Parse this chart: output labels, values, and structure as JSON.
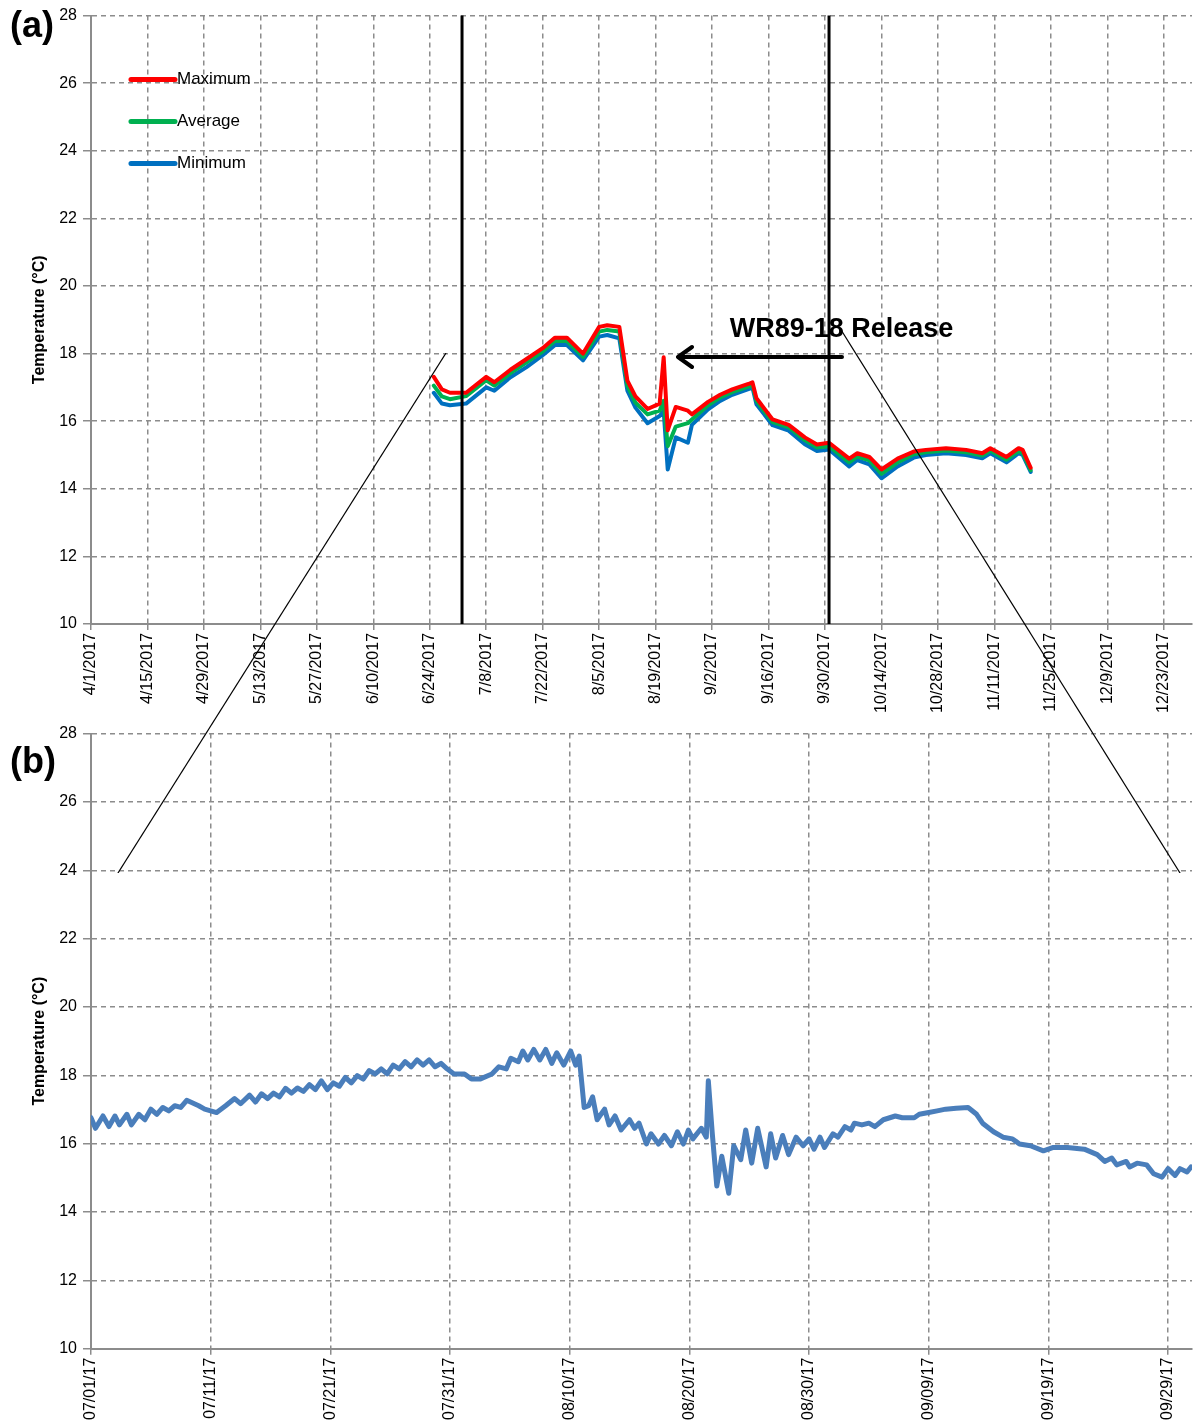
{
  "chart_data": [
    {
      "type": "line",
      "ylabel": "Temperature (°C)",
      "legend": "top left",
      "grid": true,
      "marker": "none",
      "x": [
        "2017-06-25",
        "2017-06-27",
        "2017-06-29",
        "2017-07-03",
        "2017-07-08",
        "2017-07-10",
        "2017-07-14",
        "2017-07-18",
        "2017-07-22",
        "2017-07-25",
        "2017-07-28",
        "2017-08-01",
        "2017-08-05",
        "2017-08-07",
        "2017-08-10",
        "2017-08-12",
        "2017-08-14",
        "2017-08-17",
        "2017-08-20",
        "2017-08-21",
        "2017-08-22",
        "2017-08-24",
        "2017-08-27",
        "2017-08-28",
        "2017-09-01",
        "2017-09-04",
        "2017-09-07",
        "2017-09-11",
        "2017-09-12",
        "2017-09-13",
        "2017-09-17",
        "2017-09-21",
        "2017-09-25",
        "2017-09-28",
        "2017-10-01",
        "2017-10-06",
        "2017-10-08",
        "2017-10-11",
        "2017-10-14",
        "2017-10-18",
        "2017-10-22",
        "2017-10-25",
        "2017-10-30",
        "2017-11-04",
        "2017-11-08",
        "2017-11-10",
        "2017-11-14",
        "2017-11-17",
        "2017-11-18",
        "2017-11-20"
      ],
      "series": [
        {
          "name": "Maximum",
          "color": "#ff0000",
          "values": [
            17.31,
            16.94,
            16.84,
            16.84,
            17.31,
            17.15,
            17.52,
            17.84,
            18.16,
            18.47,
            18.47,
            18.0,
            18.79,
            18.84,
            18.79,
            17.2,
            16.73,
            16.36,
            16.52,
            17.89,
            15.73,
            16.42,
            16.31,
            16.2,
            16.57,
            16.78,
            16.94,
            17.1,
            17.15,
            16.68,
            16.05,
            15.89,
            15.52,
            15.31,
            15.36,
            14.89,
            15.05,
            14.94,
            14.57,
            14.89,
            15.1,
            15.15,
            15.2,
            15.15,
            15.05,
            15.2,
            14.94,
            15.2,
            15.15,
            14.62
          ]
        },
        {
          "name": "Average",
          "color": "#00b050",
          "values": [
            17.05,
            16.73,
            16.65,
            16.74,
            17.21,
            17.05,
            17.42,
            17.74,
            18.06,
            18.37,
            18.37,
            17.9,
            18.65,
            18.7,
            18.65,
            17.05,
            16.55,
            16.2,
            16.31,
            16.6,
            15.26,
            15.84,
            15.94,
            16.05,
            16.47,
            16.7,
            16.86,
            17.02,
            17.08,
            16.6,
            15.97,
            15.82,
            15.44,
            15.22,
            15.26,
            14.78,
            14.95,
            14.84,
            14.44,
            14.78,
            15.02,
            15.08,
            15.13,
            15.08,
            14.98,
            15.13,
            14.86,
            15.12,
            15.06,
            14.55
          ]
        },
        {
          "name": "Minimum",
          "color": "#0070c0",
          "values": [
            16.84,
            16.52,
            16.47,
            16.52,
            17.0,
            16.9,
            17.3,
            17.6,
            17.95,
            18.25,
            18.25,
            17.8,
            18.5,
            18.55,
            18.45,
            16.9,
            16.4,
            15.94,
            16.15,
            16.3,
            14.57,
            15.52,
            15.36,
            15.89,
            16.35,
            16.6,
            16.78,
            16.95,
            17.0,
            16.5,
            15.88,
            15.72,
            15.32,
            15.12,
            15.16,
            14.66,
            14.85,
            14.72,
            14.31,
            14.66,
            14.92,
            15.0,
            15.05,
            15.0,
            14.9,
            15.05,
            14.78,
            15.05,
            15.0,
            14.5
          ]
        }
      ],
      "xlim": [
        "2017-04-01",
        "2017-12-30"
      ],
      "xticks": [
        {
          "value": "2017-04-01",
          "label": "4/1/2017"
        },
        {
          "value": "2017-04-15",
          "label": "4/15/2017"
        },
        {
          "value": "2017-04-29",
          "label": "4/29/2017"
        },
        {
          "value": "2017-05-13",
          "label": "5/13/2017"
        },
        {
          "value": "2017-05-27",
          "label": "5/27/2017"
        },
        {
          "value": "2017-06-10",
          "label": "6/10/2017"
        },
        {
          "value": "2017-06-24",
          "label": "6/24/2017"
        },
        {
          "value": "2017-07-08",
          "label": "7/8/2017"
        },
        {
          "value": "2017-07-22",
          "label": "7/22/2017"
        },
        {
          "value": "2017-08-05",
          "label": "8/5/2017"
        },
        {
          "value": "2017-08-19",
          "label": "8/19/2017"
        },
        {
          "value": "2017-09-02",
          "label": "9/2/2017"
        },
        {
          "value": "2017-09-16",
          "label": "9/16/2017"
        },
        {
          "value": "2017-09-30",
          "label": "9/30/2017"
        },
        {
          "value": "2017-10-14",
          "label": "10/14/2017"
        },
        {
          "value": "2017-10-28",
          "label": "10/28/2017"
        },
        {
          "value": "2017-11-11",
          "label": "11/11/2017"
        },
        {
          "value": "2017-11-25",
          "label": "11/25/2017"
        },
        {
          "value": "2017-12-09",
          "label": "12/9/2017"
        },
        {
          "value": "2017-12-23",
          "label": "12/23/2017"
        }
      ],
      "ylim": [
        10,
        28
      ],
      "yticks": [
        10,
        12,
        14,
        16,
        18,
        20,
        22,
        24,
        26,
        28
      ],
      "ref_lines": [
        {
          "axis": "x",
          "value": "2017-07-02",
          "color": "#000000"
        },
        {
          "axis": "x",
          "value": "2017-10-01",
          "color": "#000000"
        }
      ],
      "annotations": [
        "(a)",
        {
          "text": "WR89-18 Release",
          "x": "2017-08-21",
          "y": 17.89
        }
      ]
    },
    {
      "type": "line",
      "ylabel": "Temperature (°C)",
      "grid": true,
      "marker": "none",
      "series": [
        {
          "color": "#4a7ebb",
          "x": [
            "2017-07-01T00:00",
            "2017-07-01T09:00",
            "2017-07-02T00:00",
            "2017-07-02T12:00",
            "2017-07-03T00:00",
            "2017-07-03T09:00",
            "2017-07-04T00:00",
            "2017-07-04T09:00",
            "2017-07-05T00:00",
            "2017-07-05T12:00",
            "2017-07-06T00:00",
            "2017-07-06T12:00",
            "2017-07-07T00:00",
            "2017-07-07T12:00",
            "2017-07-08T00:00",
            "2017-07-08T12:00",
            "2017-07-09T00:00",
            "2017-07-10T00:00",
            "2017-07-10T12:00",
            "2017-07-11T12:00",
            "2017-07-12T06:00",
            "2017-07-13T00:00",
            "2017-07-13T12:00",
            "2017-07-14T06:00",
            "2017-07-14T18:00",
            "2017-07-15T06:00",
            "2017-07-15T18:00",
            "2017-07-16T06:00",
            "2017-07-16T18:00",
            "2017-07-17T06:00",
            "2017-07-17T18:00",
            "2017-07-18T06:00",
            "2017-07-18T18:00",
            "2017-07-19T06:00",
            "2017-07-19T18:00",
            "2017-07-20T06:00",
            "2017-07-20T18:00",
            "2017-07-21T06:00",
            "2017-07-21T18:00",
            "2017-07-22T06:00",
            "2017-07-22T18:00",
            "2017-07-23T06:00",
            "2017-07-23T18:00",
            "2017-07-24T06:00",
            "2017-07-24T18:00",
            "2017-07-25T06:00",
            "2017-07-25T18:00",
            "2017-07-26T06:00",
            "2017-07-26T18:00",
            "2017-07-27T06:00",
            "2017-07-27T18:00",
            "2017-07-28T06:00",
            "2017-07-28T18:00",
            "2017-07-29T06:00",
            "2017-07-29T18:00",
            "2017-07-30T06:00",
            "2017-07-30T18:00",
            "2017-07-31T08:00",
            "2017-08-01T05:00",
            "2017-08-01T19:00",
            "2017-08-02T12:00",
            "2017-08-03T12:00",
            "2017-08-04T02:00",
            "2017-08-04T17:00",
            "2017-08-05T02:00",
            "2017-08-05T17:00",
            "2017-08-06T02:00",
            "2017-08-06T12:00",
            "2017-08-07T00:00",
            "2017-08-07T12:00",
            "2017-08-08T00:00",
            "2017-08-08T12:00",
            "2017-08-08T22:00",
            "2017-08-09T12:00",
            "2017-08-10T02:00",
            "2017-08-10T12:00",
            "2017-08-10T19:00",
            "2017-08-11T05:00",
            "2017-08-11T14:00",
            "2017-08-11T22:00",
            "2017-08-12T07:00",
            "2017-08-12T22:00",
            "2017-08-13T07:00",
            "2017-08-13T19:00",
            "2017-08-14T07:00",
            "2017-08-15T00:00",
            "2017-08-15T10:00",
            "2017-08-15T19:00",
            "2017-08-16T10:00",
            "2017-08-16T19:00",
            "2017-08-17T10:00",
            "2017-08-17T22:00",
            "2017-08-18T12:00",
            "2017-08-19T00:00",
            "2017-08-19T12:00",
            "2017-08-19T22:00",
            "2017-08-20T07:00",
            "2017-08-21T00:00",
            "2017-08-21T10:00",
            "2017-08-21T14:00",
            "2017-08-21T22:00",
            "2017-08-22T07:00",
            "2017-08-22T17:00",
            "2017-08-23T07:00",
            "2017-08-23T17:00",
            "2017-08-24T07:00",
            "2017-08-24T17:00",
            "2017-08-25T05:00",
            "2017-08-25T17:00",
            "2017-08-26T10:00",
            "2017-08-26T19:00",
            "2017-08-27T05:00",
            "2017-08-27T19:00",
            "2017-08-28T07:00",
            "2017-08-28T22:00",
            "2017-08-29T12:00",
            "2017-08-30T00:00",
            "2017-08-30T10:00",
            "2017-08-30T22:00",
            "2017-08-31T07:00",
            "2017-09-01T00:00",
            "2017-09-01T10:00",
            "2017-09-02T00:00",
            "2017-09-02T12:00",
            "2017-09-02T19:00",
            "2017-09-03T10:00",
            "2017-09-04T00:00",
            "2017-09-04T12:00",
            "2017-09-05T05:00",
            "2017-09-06T05:00",
            "2017-09-06T19:00",
            "2017-09-07T19:00",
            "2017-09-08T05:00",
            "2017-09-09T00:00",
            "2017-09-09T17:00",
            "2017-09-10T10:00",
            "2017-09-11T07:00",
            "2017-09-12T07:00",
            "2017-09-13T00:00",
            "2017-09-13T12:00",
            "2017-09-14T10:00",
            "2017-09-15T05:00",
            "2017-09-16T00:00",
            "2017-09-16T14:00",
            "2017-09-17T12:00",
            "2017-09-18T14:00",
            "2017-09-19T10:00",
            "2017-09-20T14:00",
            "2017-09-22T00:00",
            "2017-09-23T02:00",
            "2017-09-23T17:00",
            "2017-09-24T07:00",
            "2017-09-24T17:00",
            "2017-09-25T12:00",
            "2017-09-25T19:00",
            "2017-09-26T10:00",
            "2017-09-27T05:00",
            "2017-09-27T19:00",
            "2017-09-28T12:00",
            "2017-09-29T00:00",
            "2017-09-29T14:00",
            "2017-09-30T00:00",
            "2017-09-30T14:00",
            "2017-09-30T22:00"
          ],
          "values": [
            16.76,
            16.45,
            16.81,
            16.5,
            16.81,
            16.55,
            16.86,
            16.55,
            16.86,
            16.7,
            17.01,
            16.86,
            17.06,
            16.96,
            17.11,
            17.06,
            17.27,
            17.11,
            17.01,
            16.91,
            17.11,
            17.32,
            17.17,
            17.42,
            17.22,
            17.46,
            17.32,
            17.48,
            17.37,
            17.62,
            17.48,
            17.63,
            17.53,
            17.73,
            17.58,
            17.84,
            17.58,
            17.78,
            17.68,
            17.94,
            17.78,
            17.99,
            17.89,
            18.14,
            18.04,
            18.19,
            18.04,
            18.3,
            18.19,
            18.4,
            18.25,
            18.45,
            18.3,
            18.45,
            18.25,
            18.35,
            18.19,
            18.04,
            18.04,
            17.89,
            17.89,
            18.04,
            18.25,
            18.19,
            18.5,
            18.4,
            18.71,
            18.45,
            18.76,
            18.45,
            18.76,
            18.35,
            18.66,
            18.3,
            18.71,
            18.3,
            18.56,
            17.06,
            17.11,
            17.37,
            16.7,
            17.01,
            16.55,
            16.81,
            16.4,
            16.7,
            16.45,
            16.6,
            15.99,
            16.29,
            15.99,
            16.24,
            15.94,
            16.35,
            15.99,
            16.4,
            16.14,
            16.45,
            16.19,
            17.84,
            16.29,
            14.76,
            15.63,
            14.55,
            15.94,
            15.53,
            16.4,
            15.43,
            16.45,
            15.32,
            16.29,
            15.58,
            16.24,
            15.68,
            16.19,
            15.94,
            16.14,
            15.84,
            16.19,
            15.89,
            16.29,
            16.19,
            16.5,
            16.4,
            16.6,
            16.55,
            16.6,
            16.5,
            16.7,
            16.81,
            16.76,
            16.76,
            16.86,
            16.91,
            16.96,
            17.01,
            17.04,
            17.06,
            16.86,
            16.6,
            16.35,
            16.19,
            16.14,
            15.99,
            15.94,
            15.79,
            15.89,
            15.89,
            15.84,
            15.68,
            15.48,
            15.58,
            15.38,
            15.48,
            15.32,
            15.43,
            15.38,
            15.12,
            15.02,
            15.27,
            15.07,
            15.27,
            15.17,
            15.32
          ]
        }
      ],
      "xlim": [
        "2017-07-01",
        "2017-10-01"
      ],
      "xticks": [
        {
          "value": "2017-07-01",
          "label": "07/01/17"
        },
        {
          "value": "2017-07-11",
          "label": "07/11/17"
        },
        {
          "value": "2017-07-21",
          "label": "07/21/17"
        },
        {
          "value": "2017-07-31",
          "label": "07/31/17"
        },
        {
          "value": "2017-08-10",
          "label": "08/10/17"
        },
        {
          "value": "2017-08-20",
          "label": "08/20/17"
        },
        {
          "value": "2017-08-30",
          "label": "08/30/17"
        },
        {
          "value": "2017-09-09",
          "label": "09/09/17"
        },
        {
          "value": "2017-09-19",
          "label": "09/19/17"
        },
        {
          "value": "2017-09-29",
          "label": "09/29/17"
        }
      ],
      "ylim": [
        10,
        28
      ],
      "yticks": [
        10,
        12,
        14,
        16,
        18,
        20,
        22,
        24,
        26,
        28
      ],
      "annotations": [
        "(b)"
      ]
    }
  ]
}
